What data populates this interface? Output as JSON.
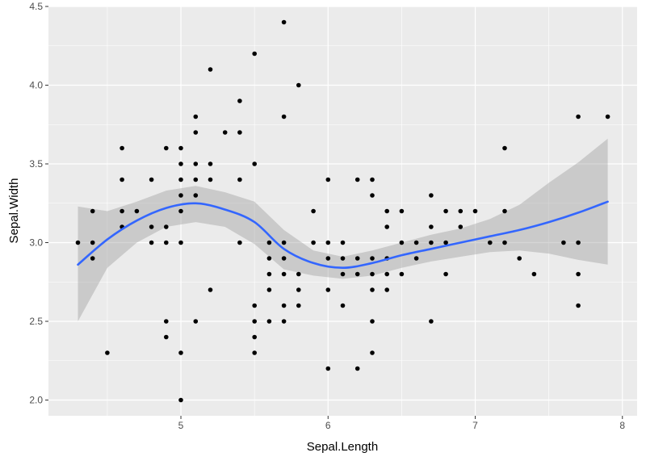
{
  "chart_data": {
    "type": "scatter",
    "xlabel": "Sepal.Length",
    "ylabel": "Sepal.Width",
    "xlim": [
      4.1,
      8.1
    ],
    "ylim": [
      1.9,
      4.5
    ],
    "x_ticks": [
      "5",
      "6",
      "7",
      "8"
    ],
    "x_tick_values": [
      5,
      6,
      7,
      8
    ],
    "y_ticks": [
      "2.0",
      "2.5",
      "3.0",
      "3.5",
      "4.0",
      "4.5"
    ],
    "y_tick_values": [
      2.0,
      2.5,
      3.0,
      3.5,
      4.0,
      4.5
    ],
    "grid": true,
    "colors": {
      "panel": "#ebebeb",
      "grid": "#ffffff",
      "points": "#000000",
      "smooth_line": "#3366ff",
      "ribbon": "#999999"
    },
    "points": [
      [
        4.3,
        3.0
      ],
      [
        4.4,
        3.2
      ],
      [
        4.4,
        3.0
      ],
      [
        4.4,
        2.9
      ],
      [
        4.5,
        2.3
      ],
      [
        4.6,
        3.6
      ],
      [
        4.6,
        3.4
      ],
      [
        4.6,
        3.2
      ],
      [
        4.6,
        3.1
      ],
      [
        4.7,
        3.2
      ],
      [
        4.8,
        3.4
      ],
      [
        4.8,
        3.1
      ],
      [
        4.8,
        3.0
      ],
      [
        4.9,
        3.6
      ],
      [
        4.9,
        3.1
      ],
      [
        4.9,
        3.0
      ],
      [
        4.9,
        2.5
      ],
      [
        4.9,
        2.4
      ],
      [
        5.0,
        3.6
      ],
      [
        5.0,
        3.5
      ],
      [
        5.0,
        3.4
      ],
      [
        5.0,
        3.3
      ],
      [
        5.0,
        3.2
      ],
      [
        5.0,
        3.0
      ],
      [
        5.0,
        2.3
      ],
      [
        5.0,
        2.0
      ],
      [
        5.1,
        3.8
      ],
      [
        5.1,
        3.7
      ],
      [
        5.1,
        3.5
      ],
      [
        5.1,
        3.4
      ],
      [
        5.1,
        3.3
      ],
      [
        5.1,
        2.5
      ],
      [
        5.2,
        4.1
      ],
      [
        5.2,
        3.5
      ],
      [
        5.2,
        3.4
      ],
      [
        5.2,
        2.7
      ],
      [
        5.3,
        3.7
      ],
      [
        5.4,
        3.9
      ],
      [
        5.4,
        3.7
      ],
      [
        5.4,
        3.4
      ],
      [
        5.4,
        3.0
      ],
      [
        5.5,
        4.2
      ],
      [
        5.5,
        3.5
      ],
      [
        5.5,
        2.6
      ],
      [
        5.5,
        2.5
      ],
      [
        5.5,
        2.4
      ],
      [
        5.5,
        2.3
      ],
      [
        5.6,
        3.0
      ],
      [
        5.6,
        2.9
      ],
      [
        5.6,
        2.8
      ],
      [
        5.6,
        2.7
      ],
      [
        5.6,
        2.5
      ],
      [
        5.7,
        4.4
      ],
      [
        5.7,
        3.8
      ],
      [
        5.7,
        3.0
      ],
      [
        5.7,
        2.9
      ],
      [
        5.7,
        2.8
      ],
      [
        5.7,
        2.6
      ],
      [
        5.7,
        2.5
      ],
      [
        5.8,
        4.0
      ],
      [
        5.8,
        2.8
      ],
      [
        5.8,
        2.7
      ],
      [
        5.8,
        2.6
      ],
      [
        5.9,
        3.2
      ],
      [
        5.9,
        3.0
      ],
      [
        6.0,
        3.4
      ],
      [
        6.0,
        3.0
      ],
      [
        6.0,
        2.9
      ],
      [
        6.0,
        2.7
      ],
      [
        6.0,
        2.2
      ],
      [
        6.1,
        3.0
      ],
      [
        6.1,
        2.9
      ],
      [
        6.1,
        2.8
      ],
      [
        6.1,
        2.6
      ],
      [
        6.2,
        3.4
      ],
      [
        6.2,
        2.9
      ],
      [
        6.2,
        2.8
      ],
      [
        6.2,
        2.2
      ],
      [
        6.3,
        3.4
      ],
      [
        6.3,
        3.3
      ],
      [
        6.3,
        2.9
      ],
      [
        6.3,
        2.8
      ],
      [
        6.3,
        2.7
      ],
      [
        6.3,
        2.5
      ],
      [
        6.3,
        2.3
      ],
      [
        6.4,
        3.2
      ],
      [
        6.4,
        3.1
      ],
      [
        6.4,
        2.9
      ],
      [
        6.4,
        2.8
      ],
      [
        6.4,
        2.7
      ],
      [
        6.5,
        3.2
      ],
      [
        6.5,
        3.0
      ],
      [
        6.5,
        2.8
      ],
      [
        6.6,
        3.0
      ],
      [
        6.6,
        2.9
      ],
      [
        6.7,
        3.3
      ],
      [
        6.7,
        3.1
      ],
      [
        6.7,
        3.0
      ],
      [
        6.7,
        2.5
      ],
      [
        6.8,
        3.2
      ],
      [
        6.8,
        3.0
      ],
      [
        6.8,
        2.8
      ],
      [
        6.9,
        3.2
      ],
      [
        6.9,
        3.1
      ],
      [
        7.0,
        3.2
      ],
      [
        7.1,
        3.0
      ],
      [
        7.2,
        3.6
      ],
      [
        7.2,
        3.2
      ],
      [
        7.2,
        3.0
      ],
      [
        7.3,
        2.9
      ],
      [
        7.4,
        2.8
      ],
      [
        7.6,
        3.0
      ],
      [
        7.7,
        3.8
      ],
      [
        7.7,
        3.0
      ],
      [
        7.7,
        2.8
      ],
      [
        7.7,
        2.6
      ],
      [
        7.9,
        3.8
      ]
    ],
    "smooth": {
      "x": [
        4.3,
        4.5,
        4.7,
        4.9,
        5.1,
        5.3,
        5.5,
        5.7,
        5.9,
        6.1,
        6.3,
        6.5,
        6.7,
        6.9,
        7.1,
        7.3,
        7.5,
        7.7,
        7.9
      ],
      "y": [
        2.86,
        3.02,
        3.14,
        3.22,
        3.25,
        3.21,
        3.13,
        2.96,
        2.87,
        2.84,
        2.87,
        2.92,
        2.96,
        3.0,
        3.04,
        3.08,
        3.13,
        3.19,
        3.26
      ],
      "lower": [
        2.5,
        2.84,
        3.0,
        3.1,
        3.13,
        3.1,
        2.99,
        2.83,
        2.79,
        2.77,
        2.79,
        2.84,
        2.88,
        2.91,
        2.94,
        2.95,
        2.93,
        2.89,
        2.86
      ],
      "upper": [
        3.23,
        3.2,
        3.26,
        3.33,
        3.36,
        3.32,
        3.26,
        3.08,
        2.95,
        2.91,
        2.95,
        3.0,
        3.05,
        3.09,
        3.15,
        3.24,
        3.38,
        3.51,
        3.66
      ]
    }
  }
}
